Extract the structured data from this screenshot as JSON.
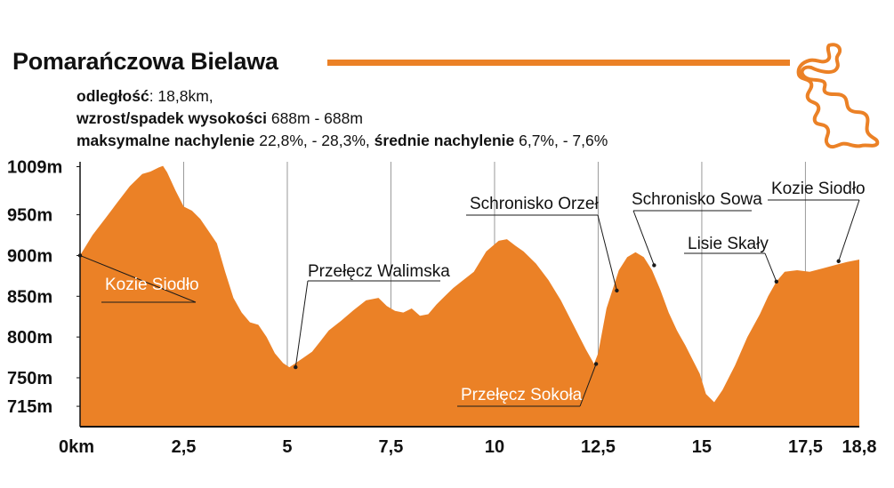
{
  "header": {
    "title": "Pomarańczowa Bielawa",
    "distance_label": "odległość",
    "distance_value": ": 18,8km,",
    "elevation_label": "wzrost/spadek wysokości",
    "elevation_value": " 688m - 688m",
    "max_slope_label": "maksymalne nachylenie",
    "max_slope_value": " 22,8%, - 28,3%,",
    "avg_slope_label": "średnie nachylenie",
    "avg_slope_value": " 6,7%, - 7,6%"
  },
  "colors": {
    "accent": "#EB8126",
    "text": "#111111",
    "grid": "#9a9a9a",
    "label_text_on_fill": "#ffffff"
  },
  "icons": {
    "logo": "bielawa-outline-icon"
  },
  "chart_data": {
    "type": "area",
    "xlim": [
      0,
      18.8
    ],
    "ylim": [
      690,
      1015
    ],
    "y_ticks": [
      {
        "value": 1009,
        "label": "1009m"
      },
      {
        "value": 950,
        "label": "950m"
      },
      {
        "value": 900,
        "label": "900m"
      },
      {
        "value": 850,
        "label": "850m"
      },
      {
        "value": 800,
        "label": "800m"
      },
      {
        "value": 750,
        "label": "750m"
      },
      {
        "value": 715,
        "label": "715m"
      }
    ],
    "x_ticks": [
      {
        "value": 0,
        "label": "0km"
      },
      {
        "value": 2.5,
        "label": "2,5"
      },
      {
        "value": 5,
        "label": "5"
      },
      {
        "value": 7.5,
        "label": "7,5"
      },
      {
        "value": 10,
        "label": "10"
      },
      {
        "value": 12.5,
        "label": "12,5"
      },
      {
        "value": 15,
        "label": "15"
      },
      {
        "value": 17.5,
        "label": "17,5"
      },
      {
        "value": 18.8,
        "label": "18,8"
      }
    ],
    "series": [
      {
        "x": [
          0,
          0.3,
          0.6,
          0.9,
          1.2,
          1.5,
          1.7,
          1.9,
          2.0,
          2.1,
          2.3,
          2.5,
          2.7,
          2.9,
          3.1,
          3.3,
          3.5,
          3.7,
          3.9,
          4.1,
          4.3,
          4.5,
          4.7,
          4.9,
          5.05,
          5.2,
          5.4,
          5.6,
          5.8,
          6.0,
          6.3,
          6.6,
          6.9,
          7.2,
          7.4,
          7.6,
          7.8,
          8.0,
          8.2,
          8.4,
          8.6,
          8.8,
          9.0,
          9.2,
          9.5,
          9.8,
          10.1,
          10.3,
          10.5,
          10.7,
          11.0,
          11.3,
          11.6,
          11.9,
          12.2,
          12.4,
          12.5,
          12.7,
          13.0,
          13.2,
          13.4,
          13.6,
          13.8,
          14.0,
          14.2,
          14.4,
          14.6,
          14.8,
          14.95,
          15.1,
          15.3,
          15.5,
          15.8,
          16.1,
          16.4,
          16.6,
          16.8,
          17.0,
          17.3,
          17.6,
          17.9,
          18.2,
          18.5,
          18.8
        ],
        "y": [
          900,
          925,
          945,
          965,
          985,
          1000,
          1003,
          1008,
          1010,
          1002,
          980,
          960,
          955,
          945,
          930,
          915,
          880,
          848,
          830,
          818,
          815,
          800,
          780,
          768,
          763,
          768,
          775,
          782,
          795,
          808,
          820,
          833,
          845,
          848,
          838,
          832,
          830,
          835,
          826,
          828,
          840,
          850,
          860,
          868,
          880,
          905,
          918,
          920,
          912,
          905,
          890,
          870,
          845,
          815,
          785,
          767,
          780,
          835,
          882,
          898,
          904,
          898,
          882,
          858,
          830,
          808,
          790,
          770,
          755,
          730,
          720,
          735,
          765,
          800,
          828,
          850,
          868,
          880,
          882,
          880,
          884,
          888,
          892,
          895
        ]
      }
    ],
    "annotations": [
      {
        "label": "Kozie Siodło",
        "x": 0,
        "y": 900,
        "on_fill": true
      },
      {
        "label": "Przełęcz Walimska",
        "x": 5.2,
        "y": 763
      },
      {
        "label": "Schronisko Orzeł",
        "x": 12.95,
        "y": 857
      },
      {
        "label": "Przełęcz Sokoła",
        "x": 12.45,
        "y": 767,
        "on_fill": true
      },
      {
        "label": "Schronisko Sowa",
        "x": 13.85,
        "y": 888
      },
      {
        "label": "Lisie Skały",
        "x": 16.8,
        "y": 868
      },
      {
        "label": "Kozie Siodło",
        "x": 18.3,
        "y": 893
      }
    ]
  }
}
